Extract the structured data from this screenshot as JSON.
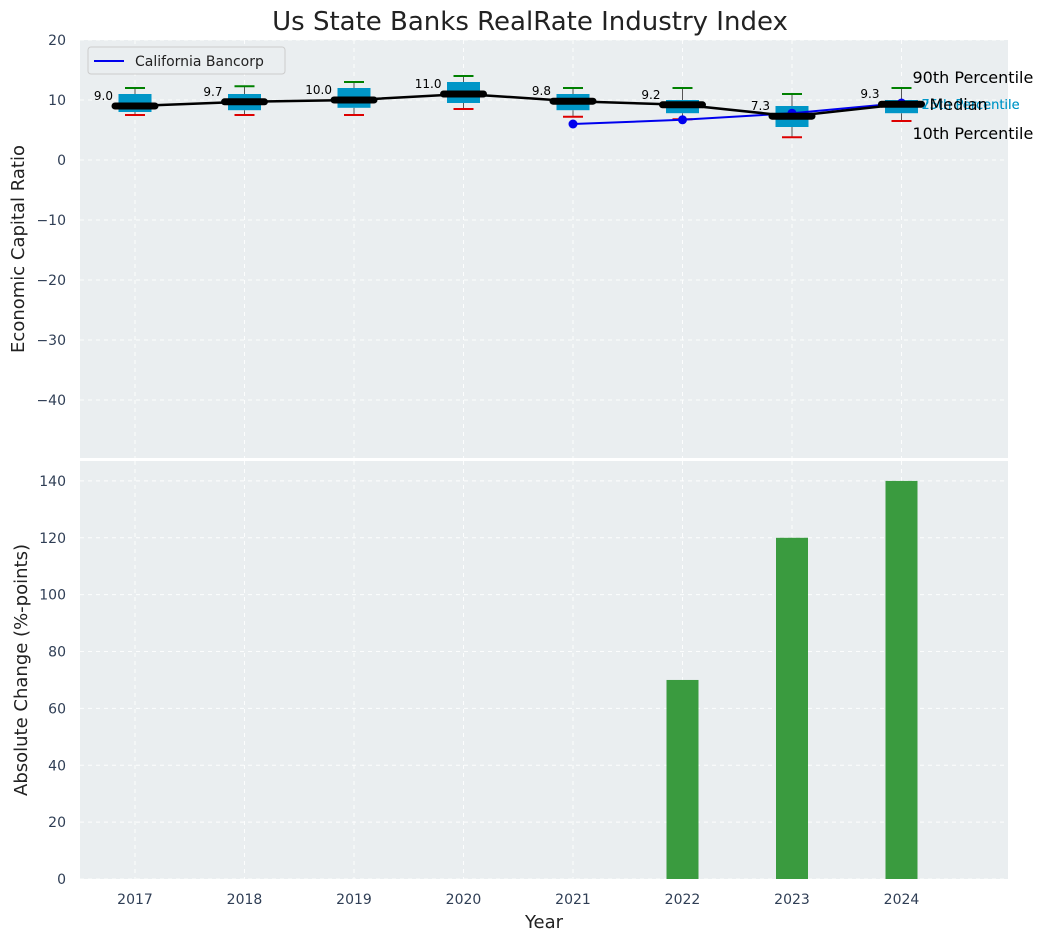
{
  "colors": {
    "panel_bg": "#eaeef0",
    "box_fill": "#0096c7",
    "median_line": "#000000",
    "p90_cap": "#008000",
    "p10_cap": "#dd0000",
    "company_line": "#0000ee",
    "bar_fill": "#3a9b3f",
    "q_label": "#0096c7"
  },
  "chart_data": [
    {
      "type": "box",
      "title": "Us State Banks RealRate Industry Index",
      "ylabel": "Economic Capital Ratio",
      "ylim": [
        -50,
        20
      ],
      "yticks": [
        20,
        10,
        0,
        -10,
        -20,
        -30,
        -40
      ],
      "ytick_labels": [
        "20",
        "10",
        "0",
        "−10",
        "−20",
        "−30",
        "−40"
      ],
      "grid": true,
      "legend": {
        "placement": "top-left",
        "entries": [
          "California Bancorp"
        ]
      },
      "categories": [
        "2017",
        "2018",
        "2019",
        "2020",
        "2021",
        "2022",
        "2023",
        "2024"
      ],
      "p90": [
        12.0,
        12.3,
        13.0,
        14.0,
        12.0,
        12.0,
        11.0,
        12.0
      ],
      "q3": [
        11.0,
        11.0,
        12.0,
        13.0,
        11.0,
        10.0,
        9.0,
        10.0
      ],
      "median": [
        9.0,
        9.7,
        10.0,
        11.0,
        9.8,
        9.2,
        7.3,
        9.3
      ],
      "median_labels": [
        "9.0",
        "9.7",
        "10.0",
        "11.0",
        "9.8",
        "9.2",
        "7.3",
        "9.3"
      ],
      "q1": [
        8.0,
        8.3,
        8.7,
        9.5,
        8.3,
        7.8,
        5.5,
        7.8
      ],
      "p10": [
        7.5,
        7.5,
        7.5,
        8.5,
        7.2,
        6.8,
        3.8,
        6.5
      ],
      "series": [
        {
          "name": "California Bancorp",
          "x": [
            "2021",
            "2022",
            "2023",
            "2024"
          ],
          "values": [
            6.0,
            6.7,
            7.8,
            9.5
          ]
        }
      ],
      "annotations": {
        "p90": "90th Percentile",
        "median": "Median",
        "p10": "10th Percentile",
        "q3": "75th Percentile",
        "q3_overlap": "25th Percentile"
      }
    },
    {
      "type": "bar",
      "xlabel": "Year",
      "ylabel": "Absolute Change (%-points)",
      "ylim": [
        0,
        147
      ],
      "yticks": [
        0,
        20,
        40,
        60,
        80,
        100,
        120,
        140
      ],
      "grid": true,
      "categories": [
        "2017",
        "2018",
        "2019",
        "2020",
        "2021",
        "2022",
        "2023",
        "2024"
      ],
      "values": [
        0,
        0,
        0,
        0,
        0,
        70,
        120,
        140
      ]
    }
  ]
}
